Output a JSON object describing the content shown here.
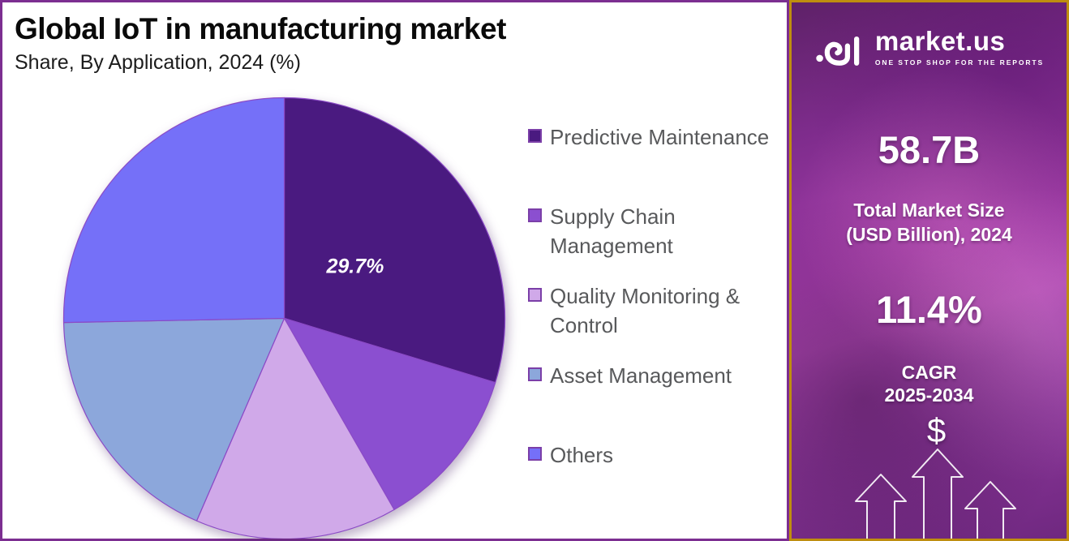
{
  "header": {
    "title": "Global IoT in manufacturing market",
    "subtitle": "Share, By Application, 2024 (%)"
  },
  "chart_data": {
    "type": "pie",
    "title": "Global IoT in manufacturing market Share, By Application, 2024 (%)",
    "labels": [
      "Predictive Maintenance",
      "Supply Chain Management",
      "Quality Monitoring & Control",
      "Asset Management",
      "Others"
    ],
    "legend_lines": [
      [
        "Predictive Maintenance"
      ],
      [
        "Supply Chain",
        "Management"
      ],
      [
        "Quality Monitoring &",
        "Control"
      ],
      [
        "Asset Management"
      ],
      [
        "Others"
      ]
    ],
    "values": [
      29.7,
      12.0,
      14.8,
      18.2,
      25.3
    ],
    "value_labels": [
      "29.7%",
      "",
      "",
      "",
      ""
    ],
    "colors": [
      "#4A1A80",
      "#8B4FD0",
      "#D0A9E9",
      "#8CA7DB",
      "#7570F8"
    ],
    "slice_stroke": "#8B4AC6",
    "label_color": "#FFFFFF",
    "start_angle_deg": 0,
    "direction": "clockwise",
    "legend_position": "right"
  },
  "sidebar": {
    "logo": {
      "brand": "market.us",
      "tagline": "ONE STOP SHOP FOR THE REPORTS"
    },
    "market_size_value": "58.7B",
    "market_size_label_line1": "Total Market Size",
    "market_size_label_line2": "(USD Billion), 2024",
    "cagr_value": "11.4%",
    "cagr_label_line1": "CAGR",
    "cagr_label_line2": "2025-2034",
    "dollar_symbol": "$",
    "colors": {
      "panel_top": "#5E2168",
      "panel_mid": "#A13BA8",
      "panel_bottom": "#6F2880",
      "border_gold": "#BE8E0F",
      "outer_border_purple": "#7C2E91",
      "text": "#FFFFFF"
    }
  }
}
